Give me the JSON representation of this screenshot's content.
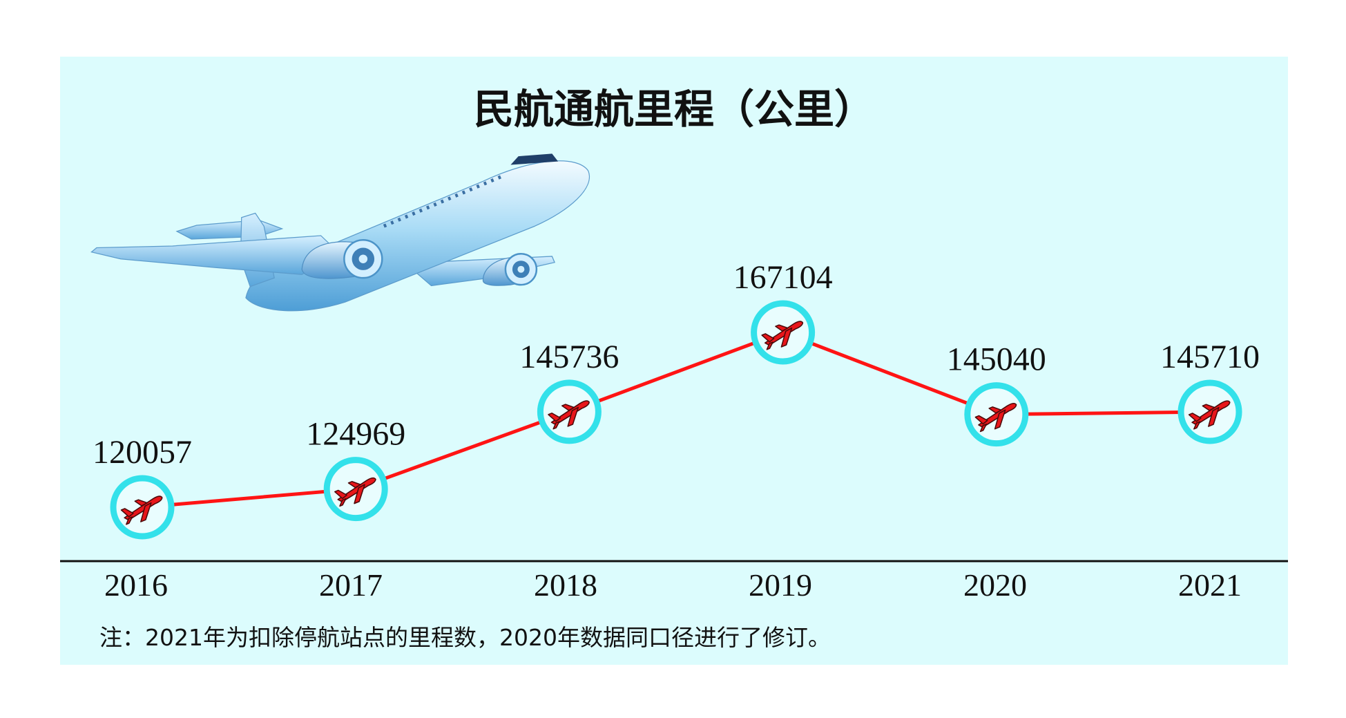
{
  "note": "注：2021年为扣除停航站点的里程数，2020年数据同口径进行了修订。",
  "colors": {
    "panel_background": "#dcfcfd",
    "line": "#ff1414",
    "marker_ring": "#33e1ea",
    "marker_fill": "#e9fdfe",
    "marker_plane": "#e8161a",
    "baseline": "#111111"
  },
  "icons": {
    "marker": "airplane-icon",
    "illustration": "airplane-illustration"
  },
  "chart_data": {
    "type": "line",
    "title": "民航通航里程（公里）",
    "categories": [
      "2016",
      "2017",
      "2018",
      "2019",
      "2020",
      "2021"
    ],
    "values": [
      120057,
      124969,
      145736,
      167104,
      145040,
      145710
    ],
    "data_labels": true,
    "grid": false,
    "legend": "none"
  }
}
